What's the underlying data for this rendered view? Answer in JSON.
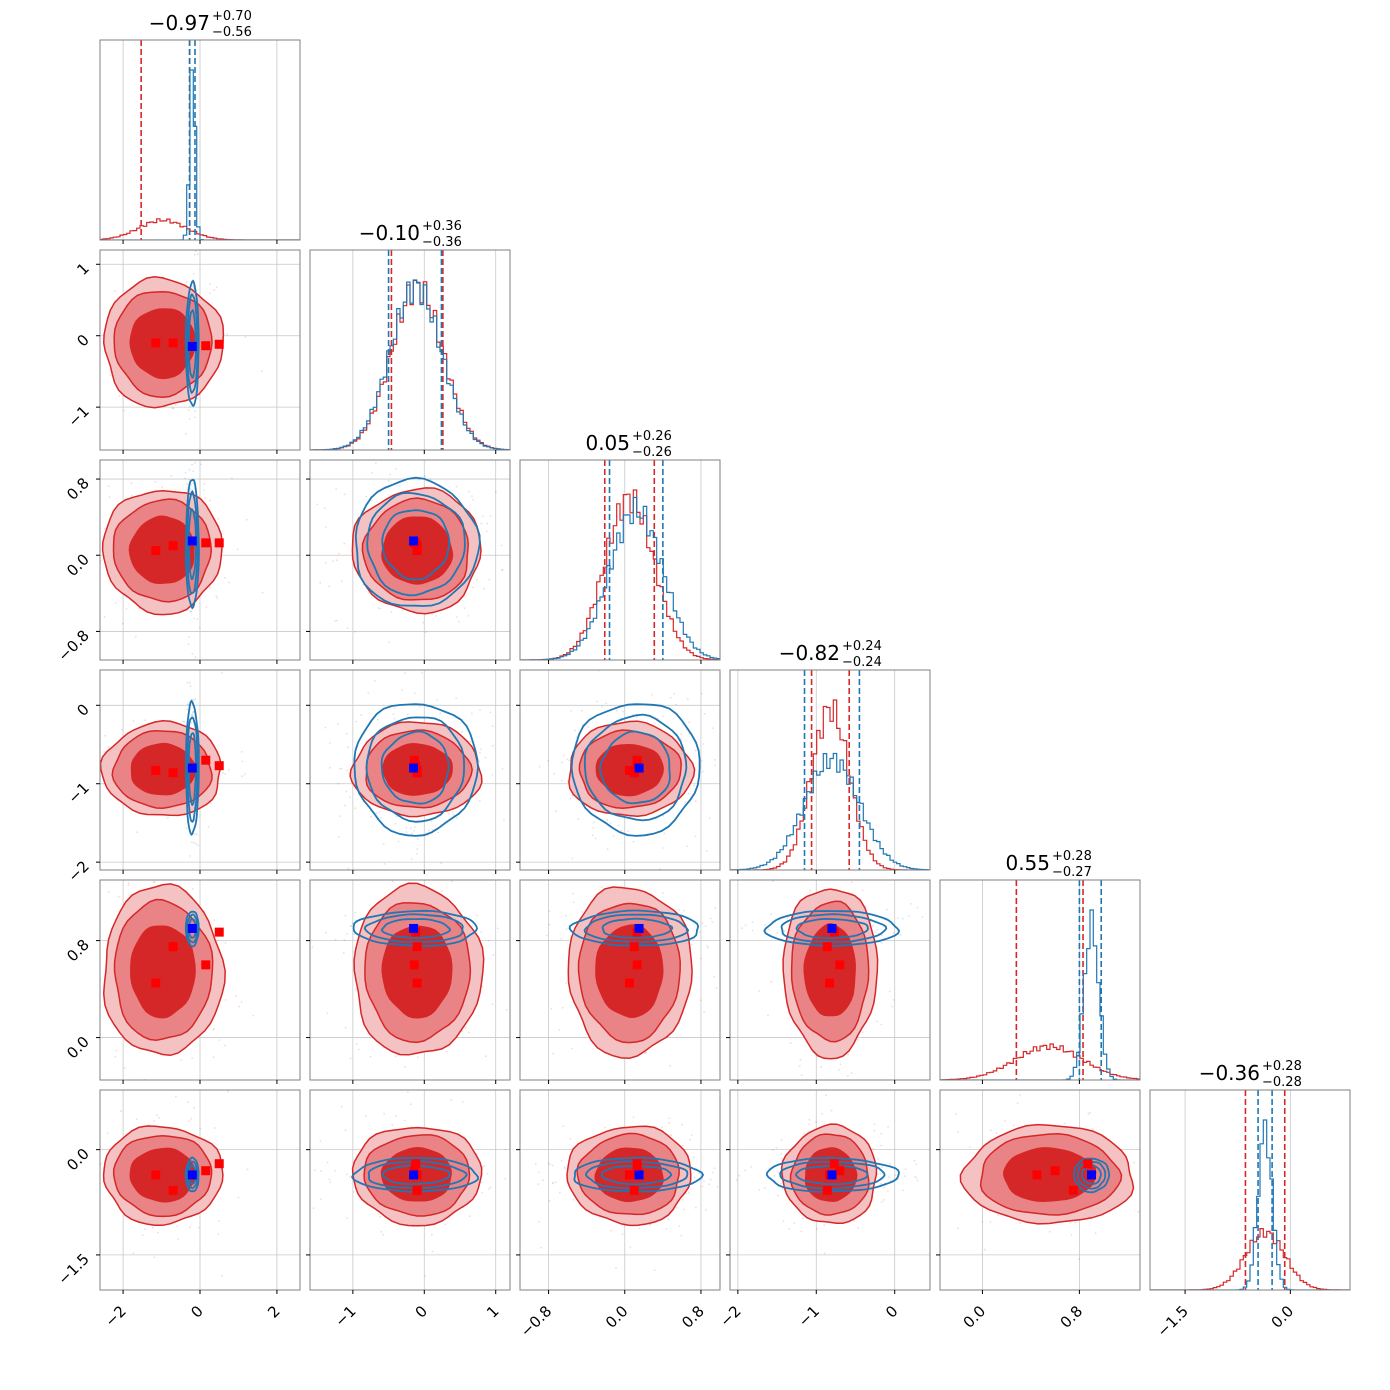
{
  "colors": {
    "red": "#d62728",
    "red_mid": "#ea8385",
    "red_light": "#f4c2c3",
    "blue": "#1f77b4",
    "marker_blue": "#0000ff",
    "marker_red": "#ff0000",
    "grid": "#c8c8c8",
    "frame": "#808080"
  },
  "chart_data": {
    "type": "corner",
    "n_params": 6,
    "grid": true,
    "titles": [
      {
        "median": "−0.97",
        "plus": "+0.70",
        "minus": "−0.56"
      },
      {
        "median": "−0.10",
        "plus": "+0.36",
        "minus": "−0.36"
      },
      {
        "median": "0.05",
        "plus": "+0.26",
        "minus": "−0.26"
      },
      {
        "median": "−0.82",
        "plus": "+0.24",
        "minus": "−0.24"
      },
      {
        "median": "0.55",
        "plus": "+0.28",
        "minus": "−0.27"
      },
      {
        "median": "−0.36",
        "plus": "+0.28",
        "minus": "−0.28"
      }
    ],
    "axes": [
      {
        "range": [
          -2.6,
          2.6
        ],
        "ticks": [
          -2,
          0,
          2
        ],
        "tick_labels": [
          "−2",
          "0",
          "2"
        ]
      },
      {
        "range": [
          -1.6,
          1.2
        ],
        "ticks": [
          -1,
          0,
          1
        ],
        "tick_labels": [
          "−1",
          "0",
          "1"
        ]
      },
      {
        "range": [
          -1.1,
          1.0
        ],
        "ticks": [
          -0.8,
          0.0,
          0.8
        ],
        "tick_labels": [
          "−0.8",
          "0.0",
          "0.8"
        ]
      },
      {
        "range": [
          -2.1,
          0.45
        ],
        "ticks": [
          -2,
          -1,
          0
        ],
        "tick_labels": [
          "−2",
          "−1",
          "0"
        ]
      },
      {
        "range": [
          -0.35,
          1.3
        ],
        "ticks": [
          0.0,
          0.8
        ],
        "tick_labels": [
          "0.0",
          "0.8"
        ]
      },
      {
        "range": [
          -2.0,
          0.85
        ],
        "ticks": [
          -1.5,
          0.0
        ],
        "tick_labels": [
          "−1.5",
          "0.0"
        ]
      }
    ],
    "series": [
      {
        "color": "red",
        "mean": [
          -0.97,
          -0.1,
          0.05,
          -0.82,
          0.55,
          -0.36
        ],
        "sigma": [
          0.62,
          0.36,
          0.26,
          0.24,
          0.28,
          0.28
        ],
        "quantiles": [
          [
            -1.53,
            -0.27
          ],
          [
            -0.46,
            0.26
          ],
          [
            -0.21,
            0.31
          ],
          [
            -1.06,
            -0.58
          ],
          [
            0.28,
            0.83
          ],
          [
            -0.64,
            -0.08
          ]
        ],
        "filled": true
      },
      {
        "color": "blue",
        "mean": [
          -0.2,
          -0.12,
          0.12,
          -0.8,
          0.9,
          -0.36
        ],
        "sigma": [
          0.07,
          0.36,
          0.28,
          0.35,
          0.06,
          0.1
        ],
        "quantiles": [
          [
            -0.27,
            -0.13
          ],
          [
            -0.5,
            0.24
          ],
          [
            -0.16,
            0.4
          ],
          [
            -1.15,
            -0.45
          ],
          [
            0.8,
            0.98
          ],
          [
            -0.46,
            -0.26
          ]
        ],
        "filled": false
      }
    ],
    "markers_blue": [
      -0.2,
      -0.15,
      0.15,
      -0.8,
      0.9,
      -0.36
    ],
    "markers_red": [
      [
        -1.15,
        -0.1,
        0.05,
        -0.83,
        0.45,
        -0.36
      ],
      [
        -0.7,
        -0.1,
        0.1,
        -0.86,
        0.75,
        -0.58
      ],
      [
        0.15,
        -0.14,
        0.13,
        -0.7,
        0.6,
        -0.3
      ],
      [
        0.5,
        -0.12,
        0.13,
        -0.77,
        0.87,
        -0.2
      ]
    ]
  }
}
